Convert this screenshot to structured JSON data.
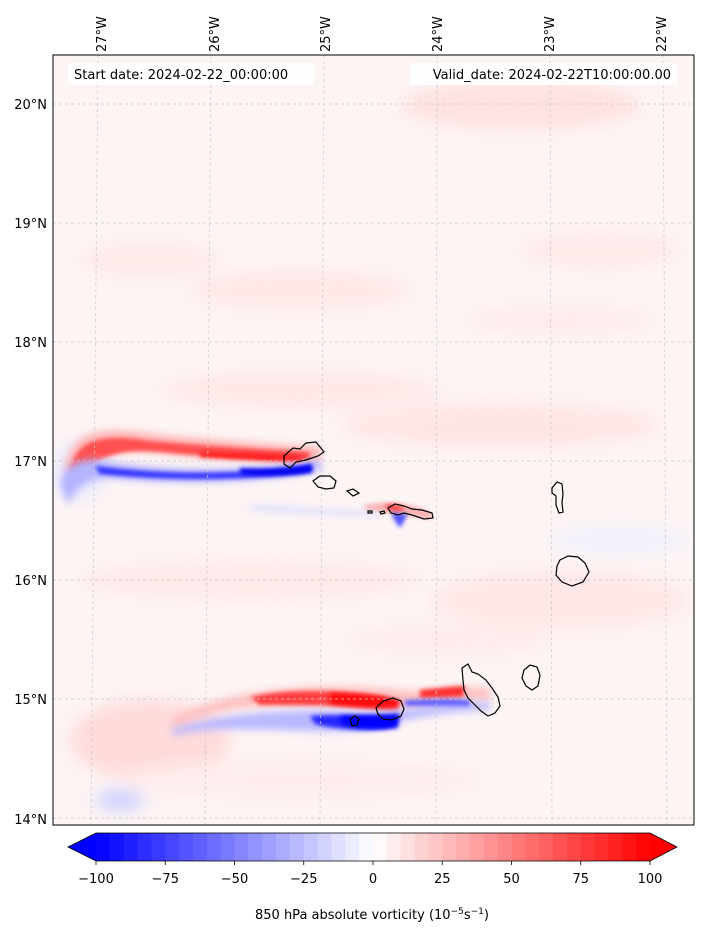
{
  "map": {
    "start_date": "Start date: 2024-02-22_00:00:00",
    "valid_date": "Valid_date: 2024-02-22T10:00:00.00",
    "field": "850 hPa absolute vorticity",
    "units_label": "850 hPa absolute vorticity (10",
    "units_exp1": "−5",
    "units_mid": "s",
    "units_exp2": "−1",
    "units_close": ")",
    "lon_labels": [
      {
        "lon": -27,
        "label": "27°W"
      },
      {
        "lon": -26,
        "label": "26°W"
      },
      {
        "lon": -25,
        "label": "25°W"
      },
      {
        "lon": -24,
        "label": "24°W"
      },
      {
        "lon": -23,
        "label": "23°W"
      },
      {
        "lon": -22,
        "label": "22°W"
      }
    ],
    "lat_labels": [
      {
        "lat": 20,
        "label": "20°N"
      },
      {
        "lat": 19,
        "label": "19°N"
      },
      {
        "lat": 18,
        "label": "18°N"
      },
      {
        "lat": 17,
        "label": "17°N"
      },
      {
        "lat": 16,
        "label": "16°N"
      },
      {
        "lat": 15,
        "label": "15°N"
      },
      {
        "lat": 14,
        "label": "14°N"
      }
    ],
    "colorbar": {
      "min": -100,
      "max": 100,
      "ticks": [
        -100,
        -75,
        -50,
        -25,
        0,
        25,
        50,
        75,
        100
      ],
      "tick_labels": [
        "−100",
        "−75",
        "−50",
        "−25",
        "0",
        "25",
        "50",
        "75",
        "100"
      ],
      "colormap": "bwr",
      "low_color": "#0000ff",
      "mid_color": "#ffffff",
      "high_color": "#ff0000",
      "extend": "both"
    },
    "colors": {
      "coastline": "#000000",
      "gridline": "#c8c8c8"
    }
  }
}
